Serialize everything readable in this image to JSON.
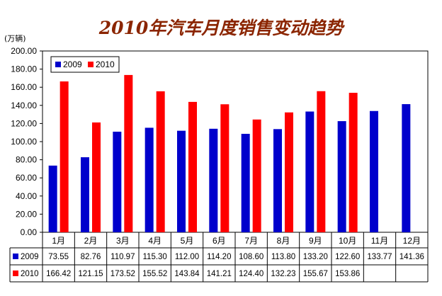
{
  "chart_data": {
    "type": "bar",
    "title": "2010年汽车月度销售变动趋势",
    "unit_label": "(万辆)",
    "categories": [
      "1月",
      "2月",
      "3月",
      "4月",
      "5月",
      "6月",
      "7月",
      "8月",
      "9月",
      "10月",
      "11月",
      "12月"
    ],
    "series": [
      {
        "name": "2009",
        "color": "#0000CC",
        "values": [
          73.55,
          82.76,
          110.97,
          115.3,
          112.0,
          114.2,
          108.6,
          113.8,
          133.2,
          122.6,
          133.77,
          141.36
        ],
        "labels": [
          "73.55",
          "82.76",
          "110.97",
          "115.30",
          "112.00",
          "114.20",
          "108.60",
          "113.80",
          "133.20",
          "122.60",
          "133.77",
          "141.36"
        ]
      },
      {
        "name": "2010",
        "color": "#FF0000",
        "values": [
          166.42,
          121.15,
          173.52,
          155.52,
          143.84,
          141.21,
          124.4,
          132.23,
          155.67,
          153.86,
          null,
          null
        ],
        "labels": [
          "166.42",
          "121.15",
          "173.52",
          "155.52",
          "143.84",
          "141.21",
          "124.40",
          "132.23",
          "155.67",
          "153.86",
          "",
          ""
        ]
      }
    ],
    "ylim": [
      0,
      200
    ],
    "yticks": [
      "0.00",
      "20.00",
      "40.00",
      "60.00",
      "80.00",
      "100.00",
      "120.00",
      "140.00",
      "160.00",
      "180.00",
      "200.00"
    ],
    "grid": false,
    "legend_position": "top-left",
    "data_table": true
  }
}
